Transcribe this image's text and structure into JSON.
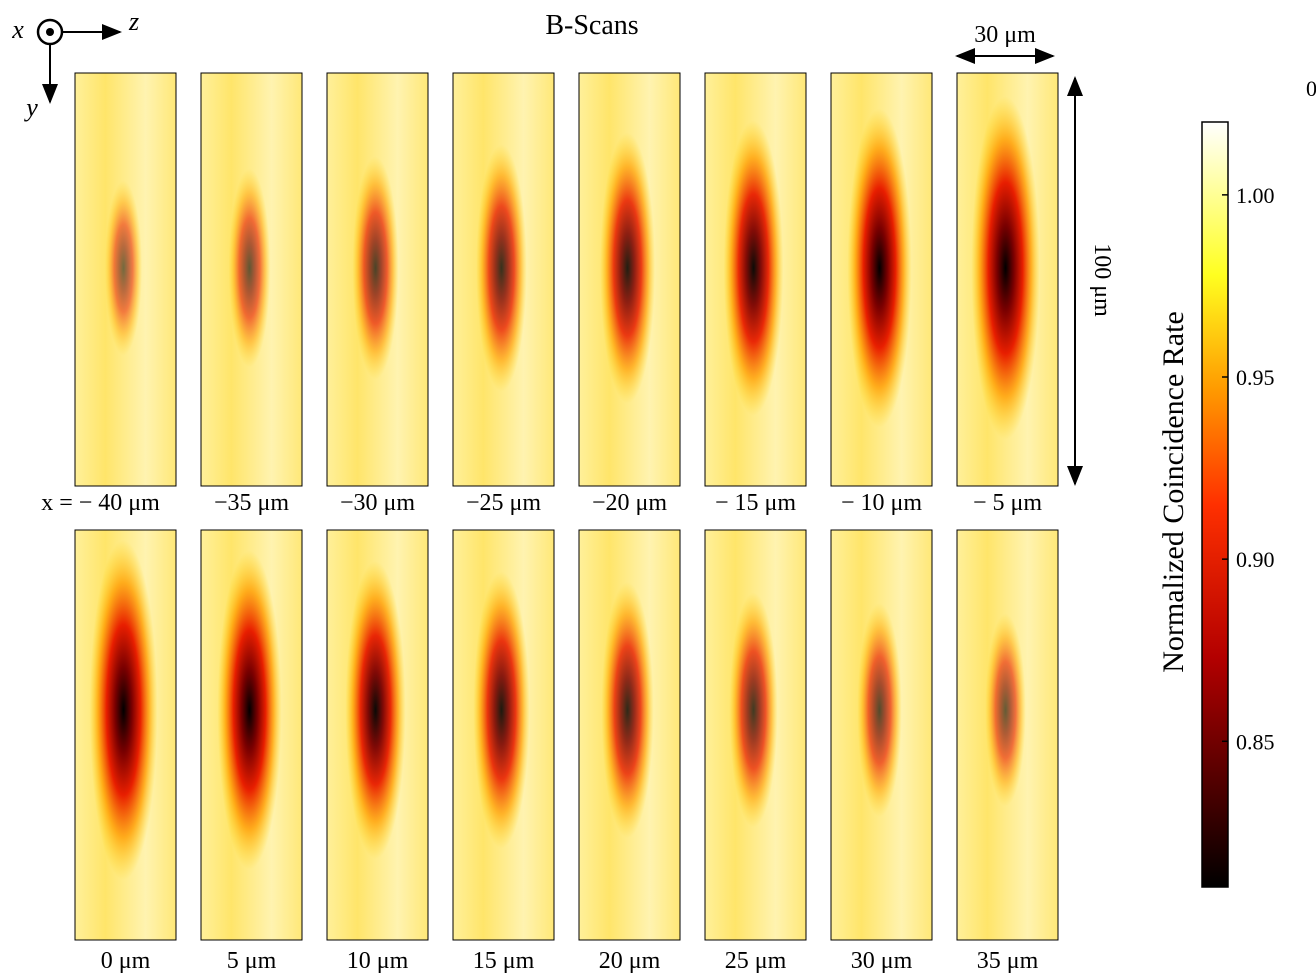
{
  "title": "B-Scans",
  "axes": {
    "x": "x",
    "y": "y",
    "z": "z"
  },
  "scale_bars": {
    "horizontal": "30 μm",
    "vertical": "100 μm"
  },
  "corner_text": "0",
  "panels": [
    {
      "label": "x = − 40 μm"
    },
    {
      "label": "−35 μm"
    },
    {
      "label": "−30 μm"
    },
    {
      "label": "−25 μm"
    },
    {
      "label": "−20 μm"
    },
    {
      "label": "− 15 μm"
    },
    {
      "label": "− 10 μm"
    },
    {
      "label": "− 5 μm"
    },
    {
      "label": "0 μm"
    },
    {
      "label": "5 μm"
    },
    {
      "label": "10 μm"
    },
    {
      "label": "15 μm"
    },
    {
      "label": "20 μm"
    },
    {
      "label": "25 μm"
    },
    {
      "label": "30 μm"
    },
    {
      "label": "35 μm"
    }
  ],
  "colorbar": {
    "label": "Normalized Coincidence Rate",
    "lim": [
      0.81,
      1.02
    ],
    "ticks": [
      {
        "value": 1.0,
        "label": "1.00"
      },
      {
        "value": 0.95,
        "label": "0.95"
      },
      {
        "value": 0.9,
        "label": "0.90"
      },
      {
        "value": 0.85,
        "label": "0.85"
      }
    ]
  }
}
